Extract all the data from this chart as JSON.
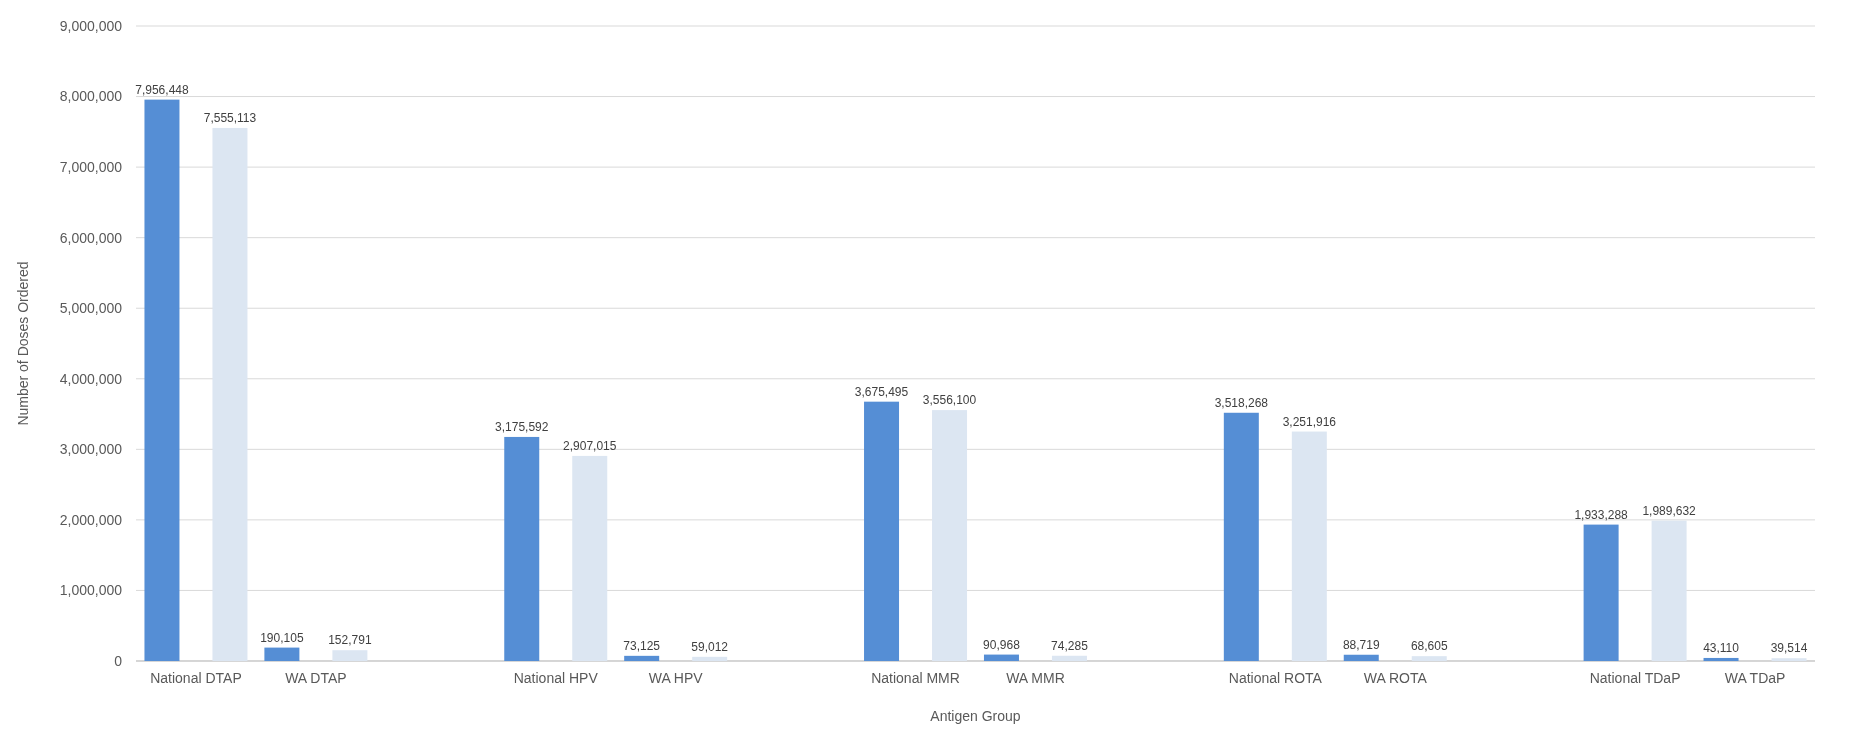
{
  "chart_data": {
    "type": "bar",
    "xlabel": "Antigen Group",
    "ylabel": "Number of Doses Ordered",
    "categories": [
      "National DTAP",
      "WA DTAP",
      null,
      "National HPV",
      "WA HPV",
      null,
      "National MMR",
      "WA MMR",
      null,
      "National ROTA",
      "WA ROTA",
      null,
      "National TDaP",
      "WA TDaP"
    ],
    "series": [
      {
        "color": "#558ed5",
        "values": [
          7956448,
          190105,
          null,
          3175592,
          73125,
          null,
          3675495,
          90968,
          null,
          3518268,
          88719,
          null,
          1933288,
          43110
        ],
        "value_labels": [
          "7,956,448",
          "190,105",
          null,
          "3,175,592",
          "73,125",
          null,
          "3,675,495",
          "90,968",
          null,
          "3,518,268",
          "88,719",
          null,
          "1,933,288",
          "43,110"
        ]
      },
      {
        "color": "#dce6f2",
        "values": [
          7555113,
          152791,
          null,
          2907015,
          59012,
          null,
          3556100,
          74285,
          null,
          3251916,
          68605,
          null,
          1989632,
          39514
        ],
        "value_labels": [
          "7,555,113",
          "152,791",
          null,
          "2,907,015",
          "59,012",
          null,
          "3,556,100",
          "74,285",
          null,
          "3,251,916",
          "68,605",
          null,
          "1,989,632",
          "39,514"
        ]
      }
    ],
    "ylim": [
      0,
      9000000
    ],
    "yticks": [
      {
        "value": 0,
        "label": "0"
      },
      {
        "value": 1000000,
        "label": "1,000,000"
      },
      {
        "value": 2000000,
        "label": "2,000,000"
      },
      {
        "value": 3000000,
        "label": "3,000,000"
      },
      {
        "value": 4000000,
        "label": "4,000,000"
      },
      {
        "value": 5000000,
        "label": "5,000,000"
      },
      {
        "value": 6000000,
        "label": "6,000,000"
      },
      {
        "value": 7000000,
        "label": "7,000,000"
      },
      {
        "value": 8000000,
        "label": "8,000,000"
      },
      {
        "value": 9000000,
        "label": "9,000,000"
      }
    ],
    "grid": "y"
  }
}
